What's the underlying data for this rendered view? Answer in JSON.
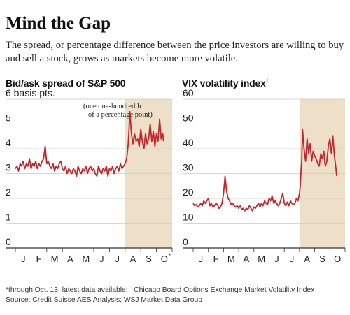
{
  "title": "Mind the Gap",
  "subtitle": "The spread, or percentage difference between the price investors are willing to buy and sell a stock, grows as markets become more volatile.",
  "footnote": "*through Oct. 13, latest data available; †Chicago Board Options Exchange Market Volatility Index",
  "source": "Source: Credit Suisse AES Analysis; WSJ Market Data Group",
  "colors": {
    "line": "#c0282d",
    "shade": "#eee0c8",
    "grid": "#c9c9c9",
    "text": "#222222"
  },
  "chart_data": [
    {
      "type": "line",
      "title": "Bid/ask spread of S&P 500",
      "ylabel": "basis pts.",
      "top_tick_label": "6 basis pts.",
      "note_line1": "(one one-hundredth",
      "note_line2": "of a percentage point)",
      "ylim": [
        0,
        6
      ],
      "yticks": [
        "0",
        "1",
        "2",
        "3",
        "4",
        "5",
        "6"
      ],
      "categories": [
        "J",
        "F",
        "M",
        "A",
        "M",
        "J",
        "J",
        "A",
        "S",
        "O"
      ],
      "last_category_marker": "*",
      "shaded_months": [
        "Aug",
        "Sep",
        "Oct"
      ],
      "series": [
        {
          "x": [
            0.0,
            0.1,
            0.2,
            0.3,
            0.4,
            0.5,
            0.6,
            0.7,
            0.8,
            0.9,
            1.0,
            1.1,
            1.2,
            1.3,
            1.4,
            1.5,
            1.6,
            1.7,
            1.8,
            1.9,
            2.0,
            2.1,
            2.2,
            2.3,
            2.4,
            2.5,
            2.6,
            2.7,
            2.8,
            2.9,
            3.0,
            3.1,
            3.2,
            3.3,
            3.4,
            3.5,
            3.6,
            3.7,
            3.8,
            3.9,
            4.0,
            4.1,
            4.2,
            4.3,
            4.4,
            4.5,
            4.6,
            4.7,
            4.8,
            4.9,
            5.0,
            5.1,
            5.2,
            5.3,
            5.4,
            5.5,
            5.6,
            5.7,
            5.8,
            5.9,
            6.0,
            6.1,
            6.2,
            6.3,
            6.4,
            6.5,
            6.6,
            6.7,
            6.8,
            6.9,
            7.0,
            7.1,
            7.2,
            7.25,
            7.3,
            7.4,
            7.5,
            7.6,
            7.7,
            7.8,
            7.9,
            8.0,
            8.1,
            8.2,
            8.3,
            8.4,
            8.5,
            8.6,
            8.7,
            8.8,
            8.9,
            9.0,
            9.1,
            9.2,
            9.3,
            9.4,
            9.45
          ],
          "y": [
            3.2,
            3.3,
            3.1,
            3.4,
            3.3,
            3.5,
            3.2,
            3.4,
            3.3,
            3.6,
            3.2,
            3.4,
            3.3,
            3.5,
            3.2,
            3.4,
            3.3,
            3.5,
            3.6,
            4.1,
            3.4,
            3.5,
            3.3,
            3.2,
            3.4,
            3.1,
            3.3,
            3.2,
            3.4,
            3.5,
            3.2,
            3.1,
            3.3,
            3.0,
            3.2,
            3.1,
            3.0,
            3.2,
            3.1,
            2.9,
            3.3,
            3.1,
            3.0,
            3.2,
            3.1,
            3.3,
            3.0,
            3.2,
            3.3,
            3.1,
            3.2,
            3.0,
            2.9,
            3.3,
            3.1,
            3.0,
            3.2,
            3.1,
            3.3,
            2.9,
            3.2,
            3.1,
            3.3,
            3.0,
            3.2,
            3.3,
            3.1,
            3.4,
            3.2,
            3.3,
            3.4,
            3.6,
            4.2,
            4.8,
            5.5,
            4.6,
            4.2,
            4.6,
            4.3,
            4.4,
            4.1,
            4.8,
            4.3,
            4.0,
            4.6,
            4.2,
            4.4,
            5.0,
            4.3,
            4.7,
            4.1,
            4.6,
            4.3,
            5.2,
            4.4,
            4.6,
            4.3
          ]
        }
      ]
    },
    {
      "type": "line",
      "title": "VIX volatility index",
      "title_marker": "†",
      "ylim": [
        0,
        60
      ],
      "yticks": [
        "0",
        "10",
        "20",
        "30",
        "40",
        "50",
        "60"
      ],
      "categories": [
        "J",
        "F",
        "M",
        "A",
        "M",
        "J",
        "J",
        "A",
        "S",
        "O"
      ],
      "shaded_months": [
        "Aug",
        "Sep",
        "Oct"
      ],
      "series": [
        {
          "x": [
            0.0,
            0.1,
            0.2,
            0.3,
            0.4,
            0.5,
            0.6,
            0.7,
            0.8,
            0.9,
            1.0,
            1.1,
            1.2,
            1.3,
            1.4,
            1.5,
            1.6,
            1.7,
            1.8,
            1.9,
            2.0,
            2.1,
            2.2,
            2.3,
            2.4,
            2.5,
            2.6,
            2.7,
            2.8,
            2.9,
            3.0,
            3.1,
            3.2,
            3.3,
            3.4,
            3.5,
            3.6,
            3.7,
            3.8,
            3.9,
            4.0,
            4.1,
            4.2,
            4.3,
            4.4,
            4.5,
            4.6,
            4.7,
            4.8,
            4.9,
            5.0,
            5.1,
            5.2,
            5.3,
            5.4,
            5.5,
            5.6,
            5.7,
            5.8,
            5.9,
            6.0,
            6.1,
            6.2,
            6.3,
            6.4,
            6.5,
            6.6,
            6.7,
            6.8,
            6.9,
            7.0,
            7.05,
            7.1,
            7.15,
            7.2,
            7.3,
            7.4,
            7.5,
            7.6,
            7.7,
            7.8,
            7.9,
            8.0,
            8.1,
            8.2,
            8.3,
            8.4,
            8.5,
            8.6,
            8.7,
            8.8,
            8.9,
            9.0,
            9.1,
            9.2,
            9.3,
            9.4,
            9.45
          ],
          "y": [
            18,
            17,
            17.5,
            16.5,
            17,
            18,
            17,
            19,
            18,
            19,
            20,
            17,
            18,
            16.5,
            17,
            18,
            17.5,
            16,
            16.5,
            18,
            22,
            29,
            23,
            20,
            19,
            17.5,
            18,
            17,
            16.5,
            17,
            16,
            17,
            15.5,
            16,
            15,
            16,
            15.5,
            17,
            16,
            15,
            16.5,
            16,
            17,
            18,
            16.5,
            18,
            17,
            19,
            18,
            17.5,
            20,
            19,
            21,
            18,
            19,
            18,
            17,
            18,
            20,
            22,
            18,
            17,
            18.5,
            17,
            19,
            18,
            17.5,
            18,
            20,
            19,
            22,
            25,
            31,
            36,
            48,
            40,
            35,
            44,
            38,
            42,
            35,
            39,
            37,
            36,
            34,
            33,
            38,
            36,
            39,
            33,
            35,
            41,
            44,
            38,
            45,
            37,
            32,
            29
          ]
        }
      ]
    }
  ]
}
